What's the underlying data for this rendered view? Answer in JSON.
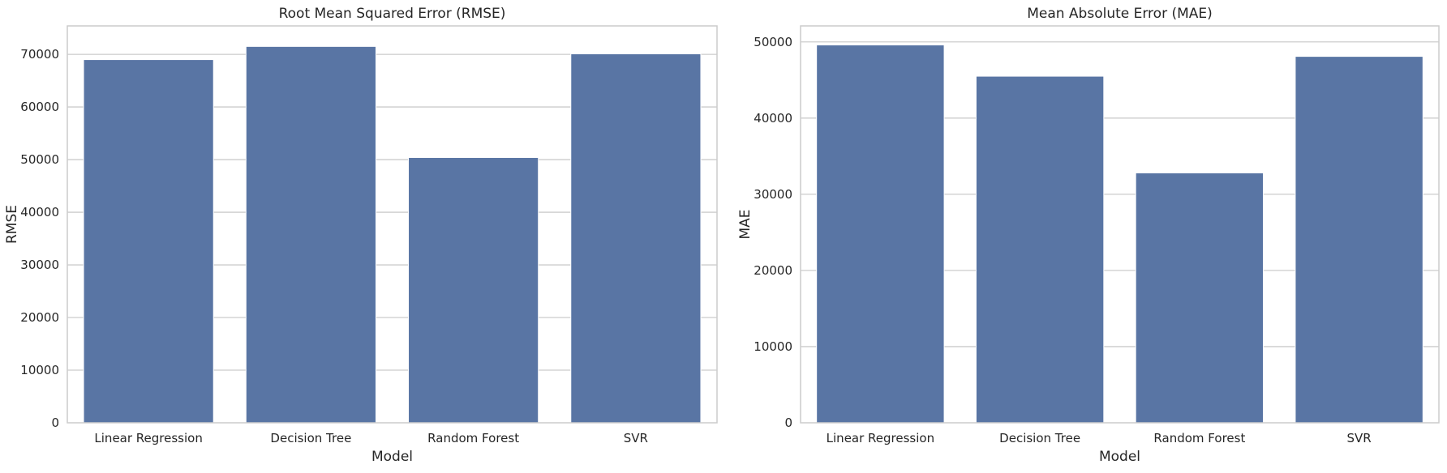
{
  "chart_data": [
    {
      "type": "bar",
      "title": "Root Mean Squared Error (RMSE)",
      "xlabel": "Model",
      "ylabel": "RMSE",
      "categories": [
        "Linear Regression",
        "Decision Tree",
        "Random Forest",
        "SVR"
      ],
      "values": [
        69000,
        71500,
        50400,
        70100
      ],
      "ylim": [
        0,
        75400
      ],
      "yticks": [
        0,
        10000,
        20000,
        30000,
        40000,
        50000,
        60000,
        70000
      ],
      "grid": true,
      "color": "#5975a4"
    },
    {
      "type": "bar",
      "title": "Mean Absolute Error (MAE)",
      "xlabel": "Model",
      "ylabel": "MAE",
      "categories": [
        "Linear Regression",
        "Decision Tree",
        "Random Forest",
        "SVR"
      ],
      "values": [
        49600,
        45500,
        32800,
        48100
      ],
      "ylim": [
        0,
        52100
      ],
      "yticks": [
        0,
        10000,
        20000,
        30000,
        40000,
        50000
      ],
      "grid": true,
      "color": "#5975a4"
    }
  ]
}
